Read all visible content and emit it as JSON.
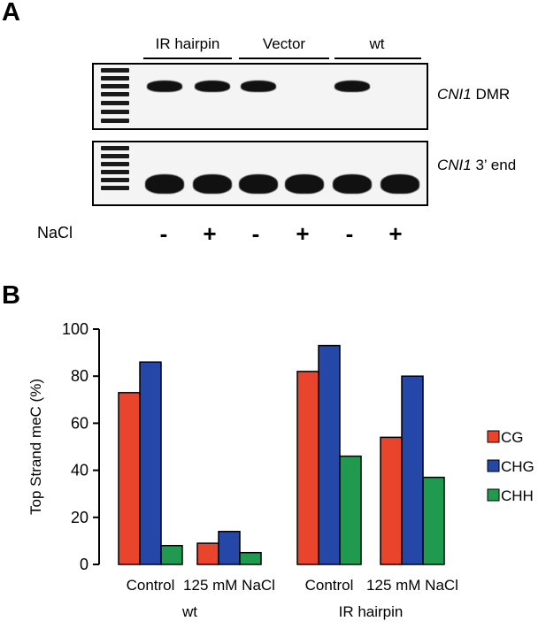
{
  "panel_a": {
    "letter": "A",
    "groups": [
      "IR hairpin",
      "Vector",
      "wt"
    ],
    "gel_labels": [
      {
        "italic": "CNI1",
        "rest": " DMR"
      },
      {
        "italic": "CNI1",
        "rest": " 3’ end"
      }
    ],
    "nacl_label": "NaCl",
    "nacl_signs": [
      "-",
      "+",
      "-",
      "+",
      "-",
      "+"
    ],
    "top_gel_band_present": [
      true,
      true,
      true,
      false,
      true,
      false
    ],
    "bottom_gel_band_present": [
      true,
      true,
      true,
      true,
      true,
      true
    ]
  },
  "panel_b": {
    "letter": "B"
  },
  "chart_data": {
    "type": "bar",
    "ylabel": "Top Strand meC (%)",
    "ylim": [
      0,
      100
    ],
    "yticks": [
      0,
      20,
      40,
      60,
      80,
      100
    ],
    "categories": [
      "Control",
      "125 mM NaCl",
      "Control",
      "125 mM NaCl"
    ],
    "category_groups": [
      {
        "label": "wt",
        "categories": [
          0,
          1
        ]
      },
      {
        "label": "IR hairpin",
        "categories": [
          2,
          3
        ]
      }
    ],
    "series": [
      {
        "name": "CG",
        "color": "#e8452c",
        "values": [
          73,
          9,
          82,
          54
        ]
      },
      {
        "name": "CHG",
        "color": "#2447a8",
        "values": [
          86,
          14,
          93,
          80
        ]
      },
      {
        "name": "CHH",
        "color": "#1f9a4e",
        "values": [
          8,
          5,
          46,
          37
        ]
      }
    ],
    "legend_position": "right",
    "grid": false
  }
}
